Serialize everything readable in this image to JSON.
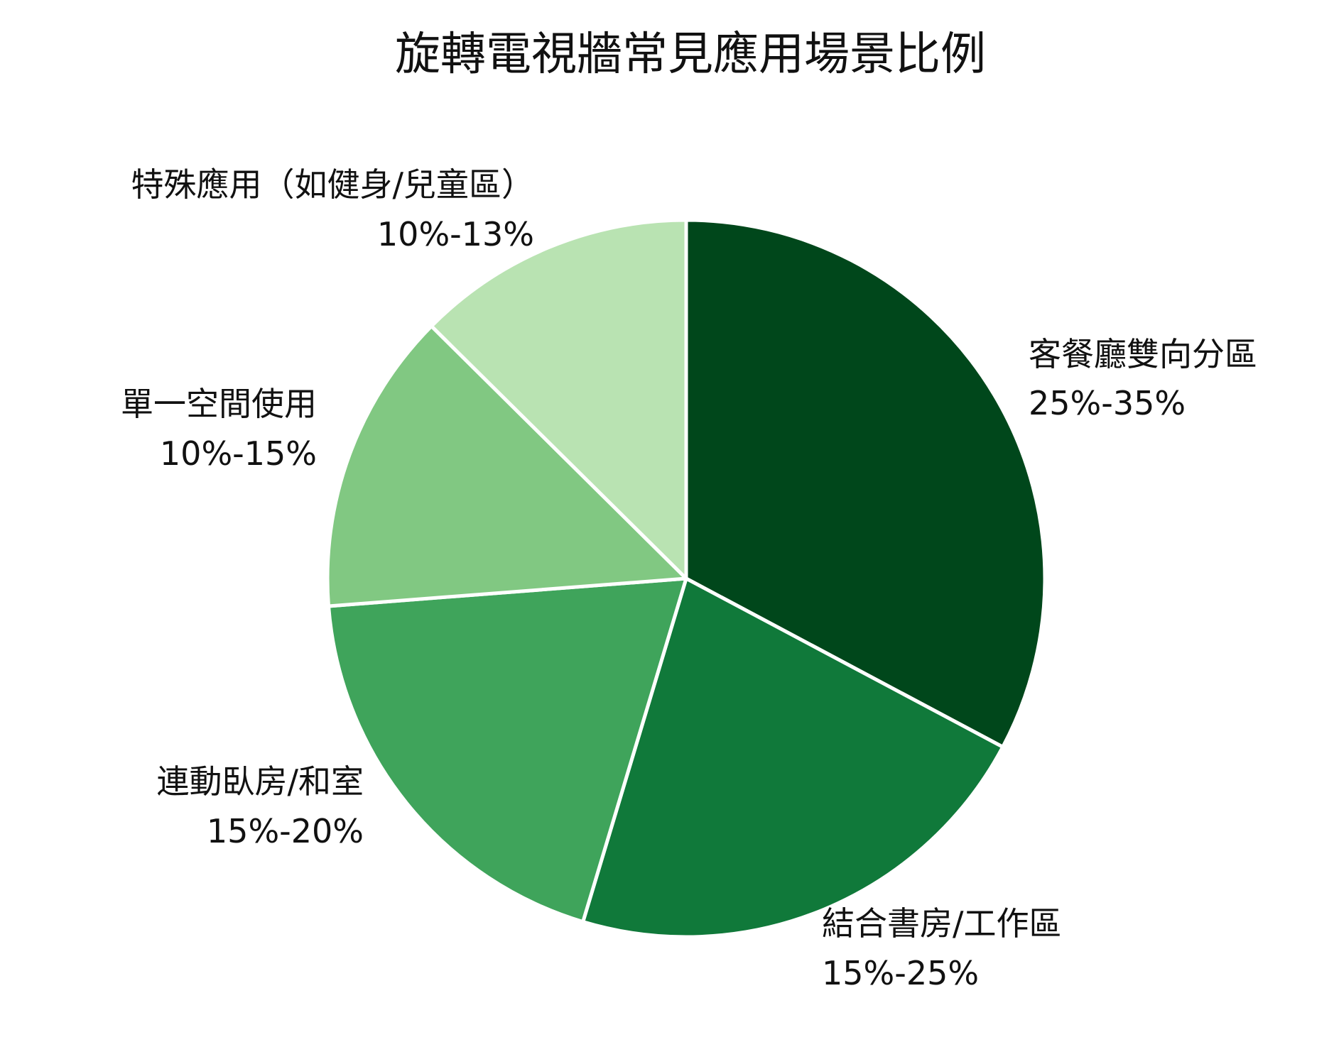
{
  "chart_data": {
    "type": "pie",
    "title": "旋轉電視牆常見應用場景比例",
    "slices": [
      {
        "category": "客餐廳雙向分區",
        "range_label": "25%-35%",
        "value": 30,
        "color": "#00471b"
      },
      {
        "category": "結合書房/工作區",
        "range_label": "15%-25%",
        "value": 20,
        "color": "#10793a"
      },
      {
        "category": "連動臥房/和室",
        "range_label": "15%-20%",
        "value": 17.5,
        "color": "#3fa45b"
      },
      {
        "category": "單一空間使用",
        "range_label": "10%-15%",
        "value": 12.5,
        "color": "#81c882"
      },
      {
        "category": "特殊應用（如健身/兒童區）",
        "range_label": "10%-13%",
        "value": 11.5,
        "color": "#b9e3b2"
      }
    ],
    "start_angle": "12 o'clock",
    "direction": "clockwise",
    "legend": "none"
  }
}
